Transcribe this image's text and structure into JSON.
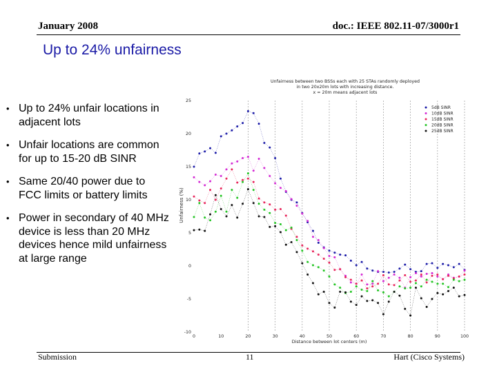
{
  "header": {
    "date": "January 2008",
    "doc_id": "doc.: IEEE 802.11-07/3000r1"
  },
  "slide_title": "Up to 24% unfairness",
  "bullets": [
    "Up to 24% unfair locations in adjacent lots",
    "Unfair locations are common for up to 15-20 dB SINR",
    "Same 20/40 power due to FCC limits or battery limits",
    "Power in secondary of 40 MHz device is less than 20 MHz devices hence mild unfairness at large range"
  ],
  "footer": {
    "left": "Submission",
    "page": "11",
    "right": "Hart (Cisco Systems)"
  },
  "chart_data": {
    "type": "scatter",
    "title_lines": [
      "Unfairness between two BSSs each with 25 STAs randomly deployed",
      "in two 20x20m lots with increasing distance.",
      "x = 20m means adjacent lots"
    ],
    "xlabel": "Distance between lot centers (m)",
    "ylabel": "Unfairness (%)",
    "xlim": [
      0,
      100
    ],
    "ylim": [
      -10,
      25
    ],
    "xticks": [
      0,
      10,
      20,
      30,
      40,
      50,
      60,
      70,
      80,
      90,
      100
    ],
    "yticks": [
      -10,
      -5,
      0,
      5,
      10,
      15,
      20,
      25
    ],
    "vlines": [
      20,
      30,
      40,
      50,
      60,
      70,
      80,
      90,
      100
    ],
    "x": [
      0,
      2,
      4,
      6,
      8,
      10,
      12,
      14,
      16,
      18,
      20,
      22,
      24,
      26,
      28,
      30,
      32,
      34,
      36,
      38,
      40,
      42,
      44,
      46,
      48,
      50,
      52,
      54,
      56,
      58,
      60,
      62,
      64,
      66,
      68,
      70,
      72,
      74,
      76,
      78,
      80,
      82,
      84,
      86,
      88,
      90,
      92,
      94,
      96,
      98,
      100
    ],
    "series": [
      {
        "name": "5dB SINR",
        "color": "#1c1ca8",
        "values": [
          15,
          17,
          17.3,
          17.8,
          17.1,
          19.6,
          20,
          20.5,
          21.1,
          21.6,
          23.4,
          23.1,
          21.5,
          18.6,
          17.9,
          16.3,
          13.2,
          11.2,
          10,
          9.6,
          8,
          6.6,
          5.3,
          3.5,
          2.8,
          2.3,
          2,
          1.7,
          1.6,
          0.8,
          0.1,
          0.6,
          -0.4,
          -0.7,
          -0.9,
          -0.9,
          -1,
          -0.9,
          -0.4,
          0.2,
          -0.5,
          -0.9,
          -0.8,
          0.3,
          0.4,
          -0.3,
          0.3,
          0.1,
          -0.2,
          0.3,
          -0.6
        ]
      },
      {
        "name": "10dB SINR",
        "color": "#d42ad4",
        "values": [
          13.4,
          12.7,
          12.2,
          12.8,
          13.8,
          13.6,
          14.6,
          15.5,
          15.8,
          16.3,
          16.5,
          14.4,
          16.2,
          14.8,
          13.6,
          12.5,
          11.8,
          11.3,
          10.1,
          9.1,
          7.9,
          6.8,
          4.4,
          3.9,
          2.7,
          1.5,
          1.3,
          -0.5,
          -1.5,
          -2.5,
          -2.7,
          -1.3,
          -2.8,
          -2.7,
          -0.8,
          -2.3,
          -1.8,
          -1.3,
          -1.8,
          -3.3,
          -1.7,
          -1.1,
          -1.6,
          -1.2,
          -1.1,
          -1.6,
          -2,
          -1.3,
          -1.8,
          -1.6,
          -0.7
        ]
      },
      {
        "name": "15dB SINR",
        "color": "#e8245a",
        "values": [
          10.5,
          9.9,
          9.5,
          11.5,
          10,
          11.7,
          13.2,
          14.6,
          12.6,
          13,
          13.2,
          12.7,
          10.2,
          9.6,
          9.3,
          8.5,
          8.6,
          7.6,
          5.6,
          4.4,
          3.1,
          2.6,
          2.2,
          1.7,
          1.1,
          0.5,
          -0.6,
          -0.5,
          -1.7,
          -2.1,
          -2.7,
          -2.2,
          -3.4,
          -3.1,
          -2.7,
          -1.4,
          -2.8,
          -2.9,
          -2.2,
          -1.4,
          -2.4,
          -2.2,
          -1.3,
          -2.5,
          -1.5,
          -1.3,
          -2,
          -1.5,
          -1.9,
          -1.6,
          -1.3
        ]
      },
      {
        "name": "20dB SINR",
        "color": "#22c422",
        "values": [
          7.4,
          9.5,
          7.3,
          6.9,
          8.2,
          10.6,
          8.2,
          11.5,
          10.3,
          12.7,
          14,
          11.5,
          9.4,
          8.5,
          8,
          6.5,
          6.3,
          5.4,
          5.8,
          3.9,
          2.3,
          0.6,
          0.1,
          -0.2,
          -0.7,
          -1.6,
          -2.8,
          -3.3,
          -4.1,
          -3.9,
          -3.1,
          -3.6,
          -3.8,
          -2.3,
          -3.7,
          -4,
          -4.6,
          -3.9,
          -3.1,
          -3.4,
          -3.3,
          -2.6,
          -3.1,
          -2.1,
          -2.4,
          -2.7,
          -2.7,
          -3.2,
          -2.1,
          -2.3,
          -2.1
        ]
      },
      {
        "name": "25dB SINR",
        "color": "#111111",
        "values": [
          5.4,
          5.5,
          5.3,
          7.8,
          10.7,
          8.6,
          7.5,
          9.2,
          7.3,
          9.4,
          11.6,
          9.5,
          7.5,
          7.4,
          5.9,
          6,
          5.1,
          3.2,
          3.6,
          2.1,
          0.4,
          -1.3,
          -2.6,
          -4.3,
          -3.9,
          -5.6,
          -6.3,
          -3.9,
          -4,
          -5.4,
          -5.9,
          -4.6,
          -5.3,
          -5.2,
          -5.6,
          -7.3,
          -5.4,
          -3.9,
          -4.5,
          -6.5,
          -7.5,
          -3.3,
          -4.9,
          -6.2,
          -5,
          -4.1,
          -4.3,
          -3.8,
          -3.3,
          -4.6,
          -4.4
        ]
      }
    ],
    "legend_position": "top-right"
  }
}
